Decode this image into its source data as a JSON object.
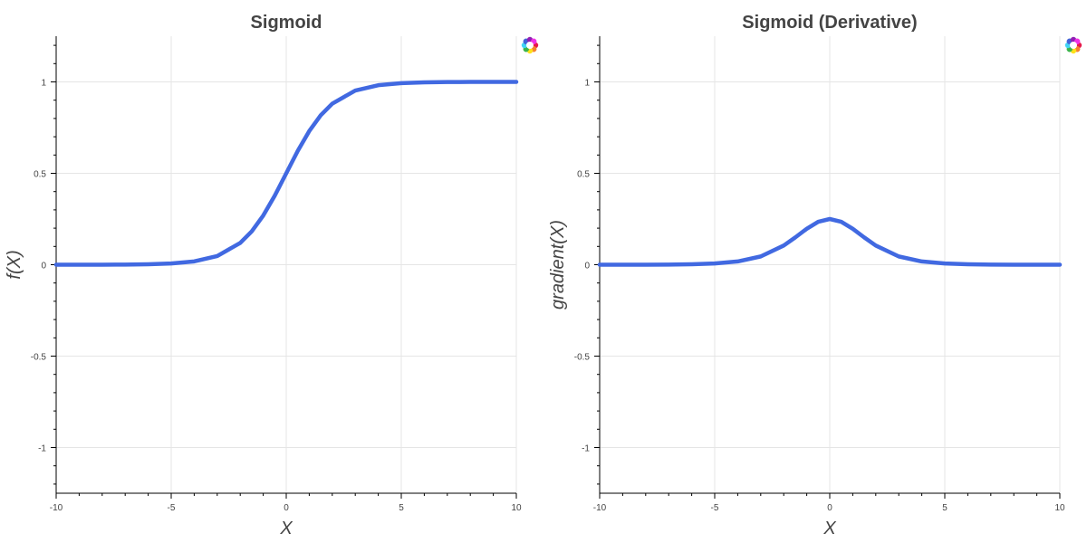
{
  "chart_data": [
    {
      "type": "line",
      "title": "Sigmoid",
      "xlabel": "X",
      "ylabel": "f(X)",
      "xlim": [
        -10,
        10
      ],
      "ylim": [
        -1.25,
        1.25
      ],
      "xticks": [
        -10,
        -5,
        0,
        5,
        10
      ],
      "yticks": [
        -1,
        -0.5,
        0,
        0.5,
        1
      ],
      "xtick_labels": [
        "-10",
        "-5",
        "0",
        "5",
        "10"
      ],
      "ytick_labels": [
        "-1",
        "-0.5",
        "0",
        "0.5",
        "1"
      ],
      "grid": true,
      "color": "#4169E1",
      "x": [
        -10,
        -9,
        -8,
        -7,
        -6,
        -5,
        -4,
        -3,
        -2,
        -1.5,
        -1,
        -0.5,
        0,
        0.5,
        1,
        1.5,
        2,
        3,
        4,
        5,
        6,
        7,
        8,
        9,
        10
      ],
      "y": [
        0.0,
        0.0001,
        0.0003,
        0.0009,
        0.0025,
        0.0067,
        0.018,
        0.0474,
        0.1192,
        0.1824,
        0.2689,
        0.3775,
        0.5,
        0.6225,
        0.7311,
        0.8176,
        0.8808,
        0.9526,
        0.982,
        0.9933,
        0.9975,
        0.9991,
        0.9997,
        0.9999,
        1.0
      ]
    },
    {
      "type": "line",
      "title": "Sigmoid (Derivative)",
      "xlabel": "X",
      "ylabel": "gradient(X)",
      "xlim": [
        -10,
        10
      ],
      "ylim": [
        -1.25,
        1.25
      ],
      "xticks": [
        -10,
        -5,
        0,
        5,
        10
      ],
      "yticks": [
        -1,
        -0.5,
        0,
        0.5,
        1
      ],
      "xtick_labels": [
        "-10",
        "-5",
        "0",
        "5",
        "10"
      ],
      "ytick_labels": [
        "-1",
        "-0.5",
        "0",
        "0.5",
        "1"
      ],
      "grid": true,
      "color": "#4169E1",
      "x": [
        -10,
        -9,
        -8,
        -7,
        -6,
        -5,
        -4,
        -3,
        -2,
        -1.5,
        -1,
        -0.5,
        0,
        0.5,
        1,
        1.5,
        2,
        3,
        4,
        5,
        6,
        7,
        8,
        9,
        10
      ],
      "y": [
        0.0,
        0.0001,
        0.0003,
        0.0009,
        0.0025,
        0.0066,
        0.0177,
        0.0452,
        0.105,
        0.1491,
        0.1966,
        0.235,
        0.25,
        0.235,
        0.1966,
        0.1491,
        0.105,
        0.0452,
        0.0177,
        0.0066,
        0.0025,
        0.0009,
        0.0003,
        0.0001,
        0.0
      ]
    }
  ]
}
